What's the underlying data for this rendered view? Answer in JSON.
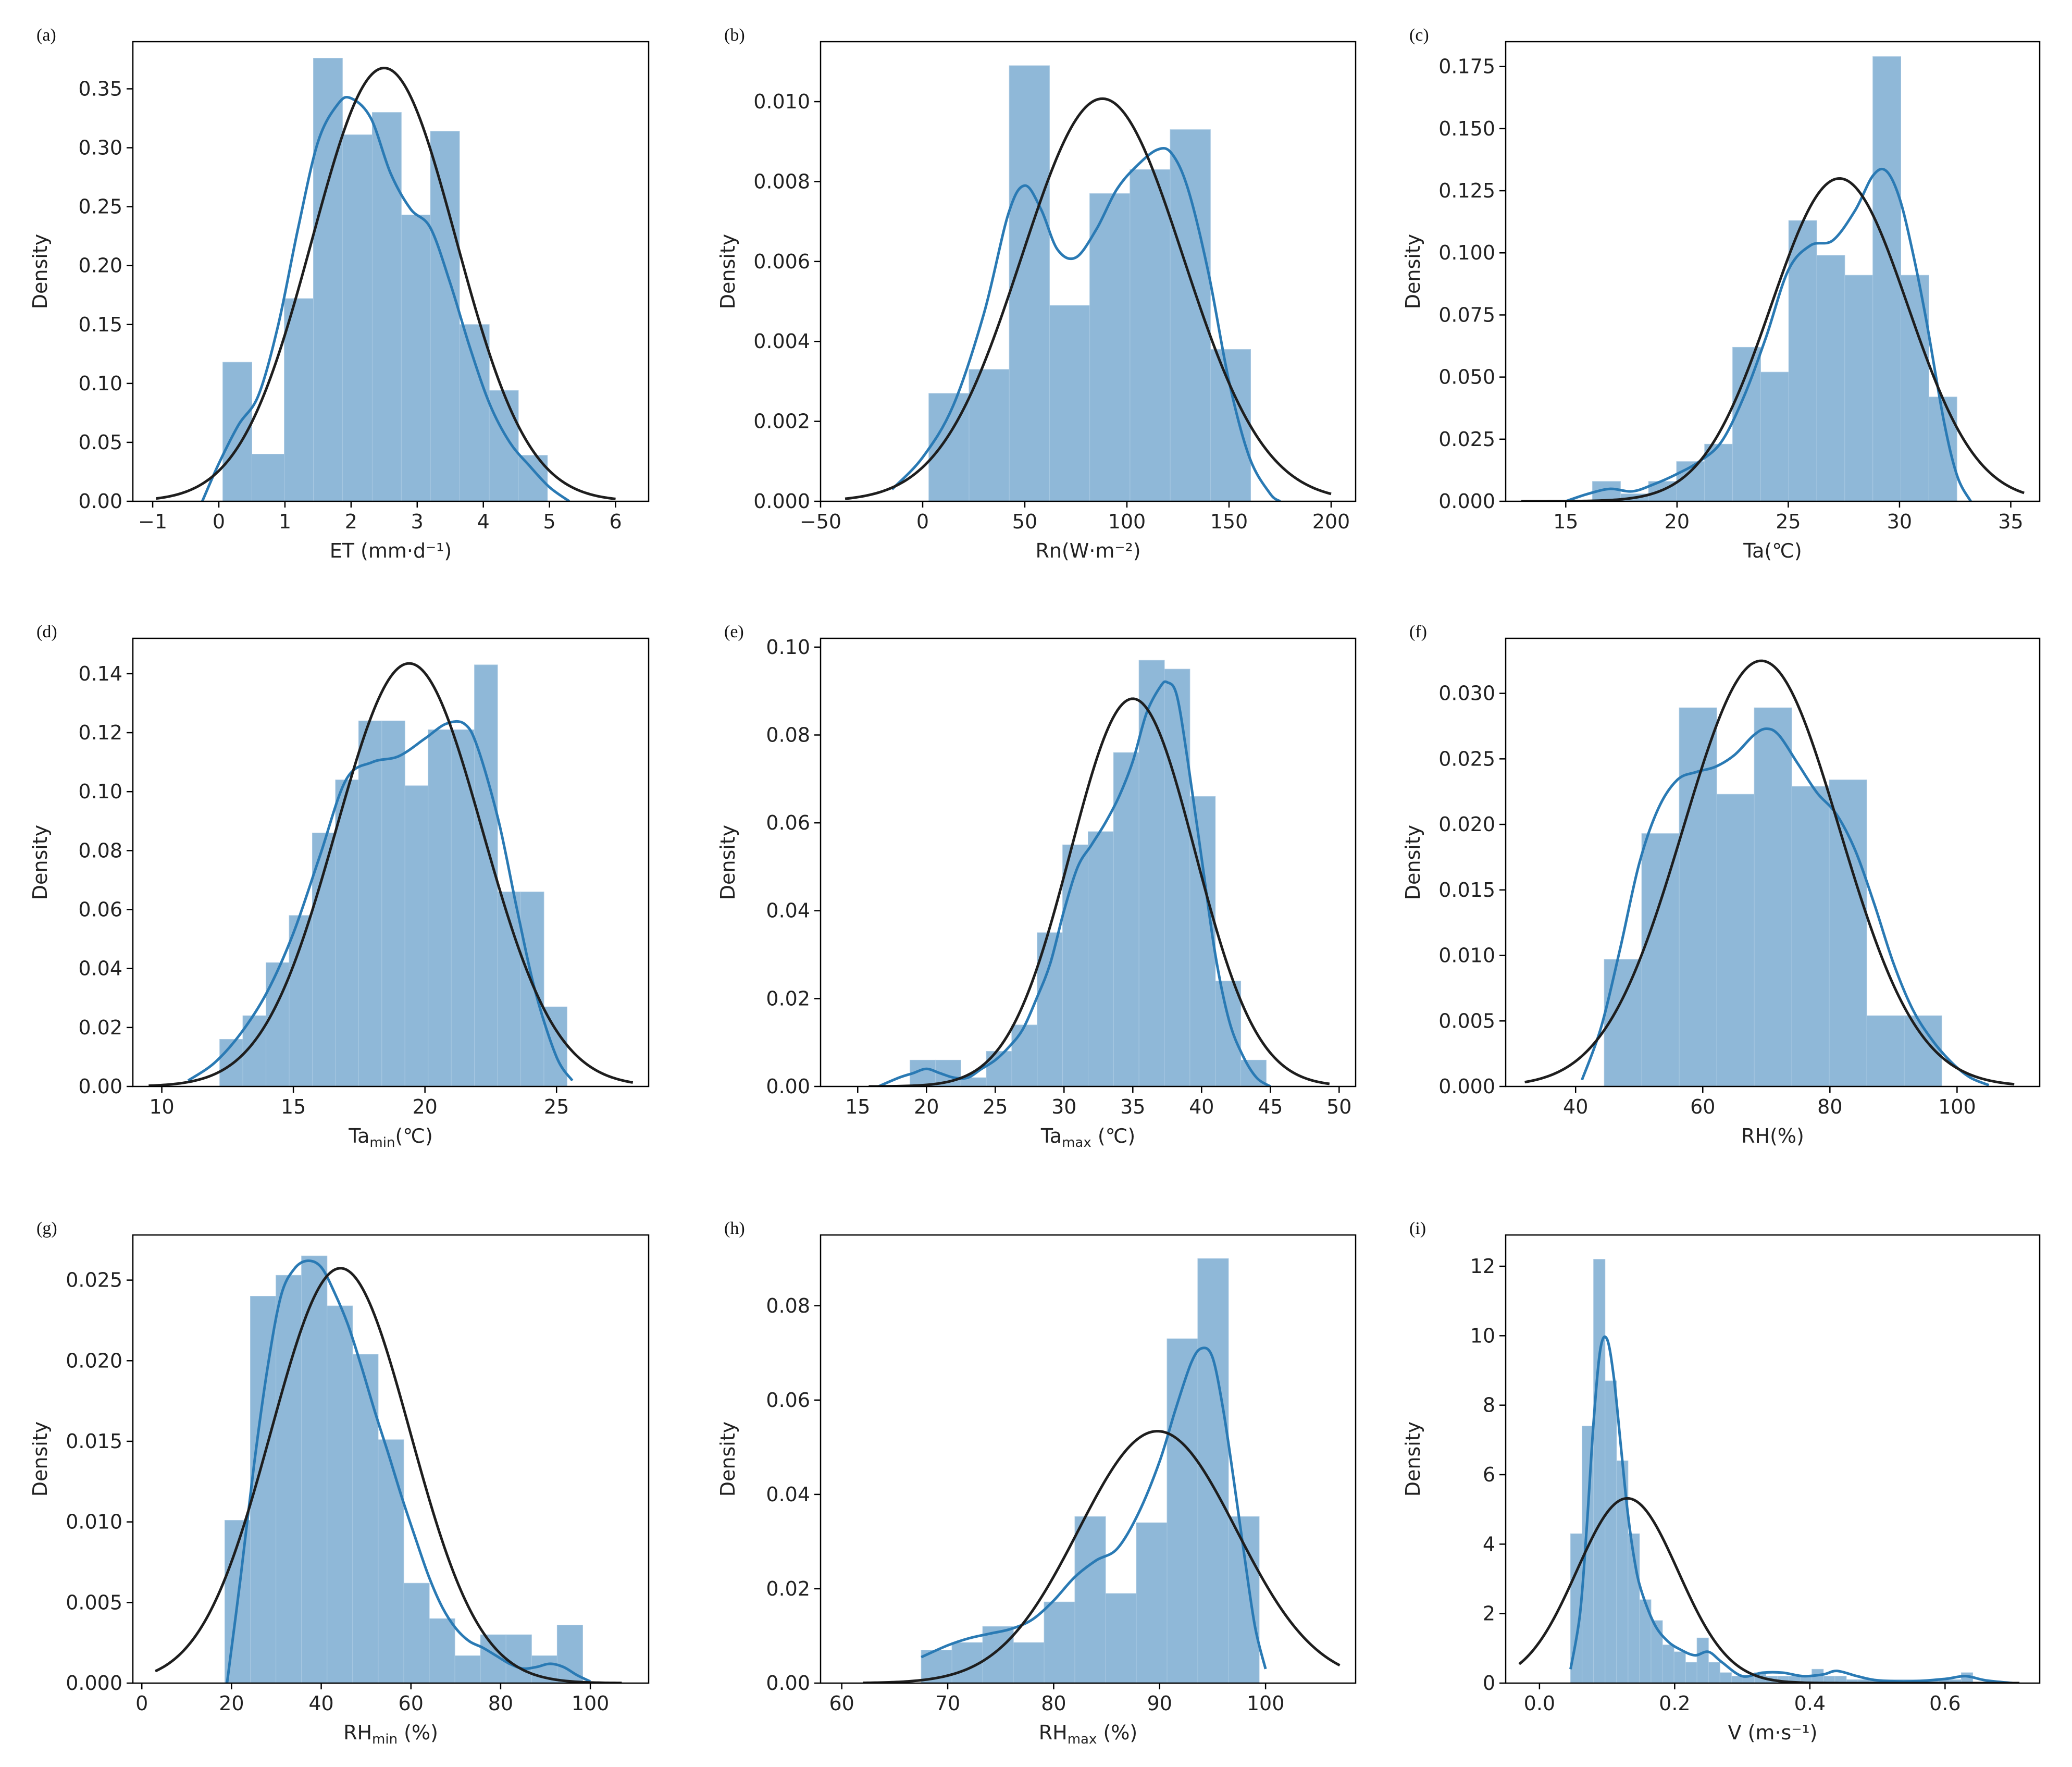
{
  "chart_data": [
    {
      "panel": "(a)",
      "type": "bar",
      "title": "",
      "xlabel": "ET (mm·d⁻¹)",
      "ylabel": "Density",
      "xlim": [
        -1.3,
        6.5
      ],
      "ylim": [
        0,
        0.39
      ],
      "xticks": [
        -1,
        0,
        1,
        2,
        3,
        4,
        5,
        6
      ],
      "xtick_labels": [
        "−1",
        "0",
        "1",
        "2",
        "3",
        "4",
        "5",
        "6"
      ],
      "yticks": [
        0,
        0.05,
        0.1,
        0.15,
        0.2,
        0.25,
        0.3,
        0.35
      ],
      "ytick_labels": [
        "0.00",
        "0.05",
        "0.10",
        "0.15",
        "0.20",
        "0.25",
        "0.30",
        "0.35"
      ],
      "hist_edges": [
        0.06,
        0.5,
        0.99,
        1.43,
        1.87,
        2.32,
        2.76,
        3.2,
        3.64,
        4.09,
        4.53,
        4.97
      ],
      "hist_values": [
        0.118,
        0.04,
        0.172,
        0.376,
        0.311,
        0.33,
        0.243,
        0.314,
        0.15,
        0.094,
        0.039
      ],
      "kde_x": [
        -0.25,
        0.0,
        0.3,
        0.6,
        0.9,
        1.2,
        1.5,
        1.8,
        2.0,
        2.3,
        2.6,
        2.9,
        3.2,
        3.5,
        3.8,
        4.1,
        4.4,
        4.7,
        5.0,
        5.3
      ],
      "kde_y": [
        0.0,
        0.032,
        0.065,
        0.09,
        0.15,
        0.232,
        0.305,
        0.337,
        0.342,
        0.325,
        0.278,
        0.248,
        0.232,
        0.185,
        0.13,
        0.082,
        0.05,
        0.03,
        0.012,
        0.0
      ],
      "normal": {
        "mean": 2.5,
        "sd": 1.085,
        "x_range": [
          -0.95,
          6.0
        ]
      }
    },
    {
      "panel": "(b)",
      "type": "bar",
      "title": "",
      "xlabel": "Rn(W·m⁻²)",
      "ylabel": "Density",
      "xlim": [
        -50,
        212
      ],
      "ylim": [
        0,
        0.0115
      ],
      "xticks": [
        -50,
        0,
        50,
        100,
        150,
        200
      ],
      "xtick_labels": [
        "−50",
        "0",
        "50",
        "100",
        "150",
        "200"
      ],
      "yticks": [
        0,
        0.002,
        0.004,
        0.006,
        0.008,
        0.01
      ],
      "ytick_labels": [
        "0.000",
        "0.002",
        "0.004",
        "0.006",
        "0.008",
        "0.010"
      ],
      "hist_edges": [
        3,
        22.7,
        42.4,
        62.1,
        81.8,
        101.5,
        121.2,
        140.9,
        160.6
      ],
      "hist_values": [
        0.0027,
        0.0033,
        0.0109,
        0.0049,
        0.0077,
        0.0083,
        0.0093,
        0.0038
      ],
      "kde_x": [
        -15,
        0,
        15,
        30,
        42,
        50,
        58,
        66,
        75,
        85,
        95,
        105,
        115,
        122,
        130,
        140,
        150,
        160,
        170,
        175
      ],
      "kde_y": [
        0.0003,
        0.0011,
        0.0024,
        0.0047,
        0.0072,
        0.0079,
        0.0073,
        0.0063,
        0.0061,
        0.0068,
        0.0078,
        0.0084,
        0.0088,
        0.0087,
        0.0078,
        0.0057,
        0.003,
        0.0011,
        0.0002,
        0.0
      ],
      "normal": {
        "mean": 88,
        "sd": 39.6,
        "x_range": [
          -38,
          200
        ]
      }
    },
    {
      "panel": "(c)",
      "type": "bar",
      "title": "",
      "xlabel": "Ta(℃)",
      "ylabel": "Density",
      "xlim": [
        12.3,
        36.3
      ],
      "ylim": [
        0,
        0.185
      ],
      "xticks": [
        15,
        20,
        25,
        30,
        35
      ],
      "xtick_labels": [
        "15",
        "20",
        "25",
        "30",
        "35"
      ],
      "yticks": [
        0,
        0.025,
        0.05,
        0.075,
        0.1,
        0.125,
        0.15,
        0.175
      ],
      "ytick_labels": [
        "0.000",
        "0.025",
        "0.050",
        "0.075",
        "0.100",
        "0.125",
        "0.150",
        "0.175"
      ],
      "hist_edges": [
        16.2,
        17.46,
        18.72,
        19.98,
        21.24,
        22.5,
        23.76,
        25.02,
        26.28,
        27.54,
        28.8,
        30.06,
        31.32,
        32.58
      ],
      "hist_values": [
        0.008,
        0.003,
        0.008,
        0.016,
        0.023,
        0.062,
        0.052,
        0.113,
        0.099,
        0.091,
        0.179,
        0.091,
        0.042
      ],
      "kde_x": [
        15,
        16,
        17,
        18,
        19,
        20,
        21,
        22,
        23,
        24,
        25,
        26,
        27,
        28,
        28.8,
        29.4,
        30,
        30.6,
        31.2,
        32,
        32.6,
        33.2
      ],
      "kde_y": [
        0.0,
        0.003,
        0.005,
        0.004,
        0.007,
        0.011,
        0.016,
        0.024,
        0.042,
        0.066,
        0.093,
        0.103,
        0.105,
        0.117,
        0.131,
        0.133,
        0.122,
        0.1,
        0.073,
        0.032,
        0.01,
        0.0
      ],
      "normal": {
        "mean": 27.3,
        "sd": 3.07,
        "x_range": [
          13.0,
          35.6
        ]
      }
    },
    {
      "panel": "(d)",
      "type": "bar",
      "title": "",
      "xlabel": "Ta",
      "xlabel_sub": "min",
      "xlabel_tail": "(℃)",
      "ylabel": "Density",
      "xlim": [
        8.9,
        28.5
      ],
      "ylim": [
        0,
        0.152
      ],
      "xticks": [
        10,
        15,
        20,
        25
      ],
      "xtick_labels": [
        "10",
        "15",
        "20",
        "25"
      ],
      "yticks": [
        0,
        0.02,
        0.04,
        0.06,
        0.08,
        0.1,
        0.12,
        0.14
      ],
      "ytick_labels": [
        "0.00",
        "0.02",
        "0.04",
        "0.06",
        "0.08",
        "0.10",
        "0.12",
        "0.14"
      ],
      "hist_edges": [
        12.2,
        13.08,
        13.96,
        14.84,
        15.72,
        16.6,
        17.48,
        18.36,
        19.24,
        20.12,
        21.0,
        21.88,
        22.76,
        23.64,
        24.52,
        25.4
      ],
      "hist_values": [
        0.016,
        0.024,
        0.042,
        0.058,
        0.086,
        0.104,
        0.124,
        0.124,
        0.102,
        0.121,
        0.121,
        0.143,
        0.066,
        0.066,
        0.027
      ],
      "kde_x": [
        11,
        12,
        13,
        14,
        15,
        16,
        17,
        18,
        19,
        20,
        20.8,
        21.5,
        22,
        22.8,
        23.5,
        24.2,
        25,
        25.6
      ],
      "kde_y": [
        0.002,
        0.008,
        0.018,
        0.032,
        0.052,
        0.078,
        0.104,
        0.11,
        0.112,
        0.118,
        0.123,
        0.123,
        0.115,
        0.09,
        0.06,
        0.032,
        0.01,
        0.002
      ],
      "normal": {
        "mean": 19.4,
        "sd": 2.78,
        "x_range": [
          9.5,
          27.9
        ]
      }
    },
    {
      "panel": "(e)",
      "type": "bar",
      "title": "",
      "xlabel": "Ta",
      "xlabel_sub": "max",
      "xlabel_tail": " (℃)",
      "ylabel": "Density",
      "xlim": [
        12.3,
        51.2
      ],
      "ylim": [
        0,
        0.102
      ],
      "xticks": [
        15,
        20,
        25,
        30,
        35,
        40,
        45,
        50
      ],
      "xtick_labels": [
        "15",
        "20",
        "25",
        "30",
        "35",
        "40",
        "45",
        "50"
      ],
      "yticks": [
        0,
        0.02,
        0.04,
        0.06,
        0.08,
        0.1
      ],
      "ytick_labels": [
        "0.00",
        "0.02",
        "0.04",
        "0.06",
        "0.08",
        "0.10"
      ],
      "hist_edges": [
        18.8,
        20.65,
        22.5,
        24.35,
        26.2,
        28.05,
        29.9,
        31.75,
        33.6,
        35.45,
        37.3,
        39.15,
        41.0,
        42.85,
        44.7
      ],
      "hist_values": [
        0.006,
        0.006,
        0.002,
        0.008,
        0.014,
        0.035,
        0.055,
        0.058,
        0.076,
        0.097,
        0.095,
        0.066,
        0.024,
        0.006
      ],
      "kde_x": [
        16.5,
        18,
        19,
        20,
        21,
        22,
        23,
        24,
        25,
        26,
        27,
        28,
        29,
        30,
        31,
        32,
        33,
        34,
        35,
        36,
        37,
        37.5,
        38.2,
        39,
        40,
        41,
        42,
        43,
        44,
        45
      ],
      "kde_y": [
        0.0,
        0.002,
        0.003,
        0.004,
        0.003,
        0.002,
        0.002,
        0.004,
        0.006,
        0.009,
        0.013,
        0.02,
        0.028,
        0.04,
        0.05,
        0.055,
        0.06,
        0.066,
        0.074,
        0.085,
        0.091,
        0.092,
        0.089,
        0.074,
        0.052,
        0.03,
        0.015,
        0.007,
        0.002,
        0.0
      ],
      "normal": {
        "mean": 35.0,
        "sd": 4.52,
        "x_range": [
          15.8,
          49.3
        ]
      }
    },
    {
      "panel": "(f)",
      "type": "bar",
      "title": "",
      "xlabel": "RH(%)",
      "ylabel": "Density",
      "xlim": [
        29,
        113
      ],
      "ylim": [
        0,
        0.0342
      ],
      "xticks": [
        40,
        60,
        80,
        100
      ],
      "xtick_labels": [
        "40",
        "60",
        "80",
        "100"
      ],
      "yticks": [
        0,
        0.005,
        0.01,
        0.015,
        0.02,
        0.025,
        0.03
      ],
      "ytick_labels": [
        "0.000",
        "0.005",
        "0.010",
        "0.015",
        "0.020",
        "0.025",
        "0.030"
      ],
      "hist_edges": [
        44.5,
        50.4,
        56.3,
        62.2,
        68.1,
        74.0,
        79.9,
        85.8,
        91.7,
        97.6
      ],
      "hist_values": [
        0.0097,
        0.0193,
        0.0289,
        0.0223,
        0.0289,
        0.0229,
        0.0234,
        0.0054,
        0.0054
      ],
      "kde_x": [
        41,
        44,
        47,
        50,
        53,
        56,
        59,
        62,
        65,
        68,
        70,
        72,
        75,
        78,
        81,
        84,
        87,
        90,
        93,
        96,
        99,
        102,
        105
      ],
      "kde_y": [
        0.0005,
        0.0045,
        0.0105,
        0.017,
        0.0212,
        0.0234,
        0.024,
        0.0244,
        0.0253,
        0.0268,
        0.0273,
        0.0268,
        0.0246,
        0.0224,
        0.0208,
        0.018,
        0.0139,
        0.0094,
        0.0059,
        0.0036,
        0.0019,
        0.0007,
        0.0001
      ],
      "normal": {
        "mean": 69.2,
        "sd": 12.28,
        "x_range": [
          32.0,
          109.0
        ]
      }
    },
    {
      "panel": "(g)",
      "type": "bar",
      "title": "",
      "xlabel": "RH",
      "xlabel_sub": "min",
      "xlabel_tail": " (%)",
      "ylabel": "Density",
      "xlim": [
        -2,
        113
      ],
      "ylim": [
        0,
        0.0278
      ],
      "xticks": [
        0,
        20,
        40,
        60,
        80,
        100
      ],
      "xtick_labels": [
        "0",
        "20",
        "40",
        "60",
        "80",
        "100"
      ],
      "yticks": [
        0,
        0.005,
        0.01,
        0.015,
        0.02,
        0.025
      ],
      "ytick_labels": [
        "0.000",
        "0.005",
        "0.010",
        "0.015",
        "0.020",
        "0.025"
      ],
      "hist_edges": [
        18.5,
        24.2,
        29.9,
        35.6,
        41.3,
        47.0,
        52.7,
        58.4,
        64.1,
        69.8,
        75.5,
        81.2,
        86.9,
        92.6,
        98.3
      ],
      "hist_values": [
        0.0101,
        0.024,
        0.0253,
        0.0265,
        0.0234,
        0.0204,
        0.0151,
        0.0062,
        0.004,
        0.0017,
        0.003,
        0.003,
        0.0017,
        0.0036
      ],
      "kde_x": [
        19,
        22,
        25,
        28,
        31,
        34,
        37,
        40,
        43,
        46,
        49,
        52,
        55,
        58,
        61,
        64,
        67,
        70,
        73,
        76,
        79,
        82,
        85,
        88,
        91,
        94,
        97,
        100
      ],
      "kde_y": [
        0.0,
        0.0065,
        0.0135,
        0.0195,
        0.024,
        0.0257,
        0.0262,
        0.0258,
        0.0242,
        0.0222,
        0.0196,
        0.0168,
        0.0142,
        0.0115,
        0.009,
        0.0066,
        0.0047,
        0.0034,
        0.0026,
        0.0022,
        0.0017,
        0.0012,
        0.0009,
        0.001,
        0.0012,
        0.001,
        0.0005,
        0.0001
      ],
      "normal": {
        "mean": 44.3,
        "sd": 15.5,
        "x_range": [
          3.0,
          107.0
        ]
      }
    },
    {
      "panel": "(h)",
      "type": "bar",
      "title": "",
      "xlabel": "RH",
      "xlabel_sub": "max",
      "xlabel_tail": " (%)",
      "ylabel": "Density",
      "xlim": [
        58,
        108.5
      ],
      "ylim": [
        0,
        0.095
      ],
      "xticks": [
        60,
        70,
        80,
        90,
        100
      ],
      "xtick_labels": [
        "60",
        "70",
        "80",
        "90",
        "100"
      ],
      "yticks": [
        0,
        0.02,
        0.04,
        0.06,
        0.08
      ],
      "ytick_labels": [
        "0.00",
        "0.02",
        "0.04",
        "0.06",
        "0.08"
      ],
      "hist_edges": [
        67.5,
        70.4,
        73.3,
        76.2,
        79.1,
        82.0,
        84.9,
        87.8,
        90.7,
        93.6,
        96.5,
        99.4
      ],
      "hist_values": [
        0.007,
        0.0086,
        0.012,
        0.0086,
        0.0172,
        0.0353,
        0.019,
        0.034,
        0.073,
        0.09,
        0.0353
      ],
      "kde_x": [
        67.5,
        70,
        72,
        74,
        76,
        78,
        80,
        82,
        84,
        86,
        88,
        90,
        91.5,
        93,
        94,
        95,
        96,
        97,
        98,
        99,
        100
      ],
      "kde_y": [
        0.0055,
        0.008,
        0.0095,
        0.0105,
        0.0115,
        0.0135,
        0.0175,
        0.0225,
        0.026,
        0.0285,
        0.036,
        0.047,
        0.058,
        0.068,
        0.071,
        0.069,
        0.058,
        0.043,
        0.027,
        0.012,
        0.003
      ],
      "normal": {
        "mean": 89.8,
        "sd": 7.47,
        "x_range": [
          62.0,
          107.0
        ]
      }
    },
    {
      "panel": "(i)",
      "type": "bar",
      "title": "",
      "xlabel": "V (m·s⁻¹)",
      "ylabel": "Density",
      "xlim": [
        -0.05,
        0.74
      ],
      "ylim": [
        0,
        12.9
      ],
      "xticks": [
        0,
        0.2,
        0.4,
        0.6
      ],
      "xtick_labels": [
        "0.0",
        "0.2",
        "0.4",
        "0.6"
      ],
      "yticks": [
        0,
        2,
        4,
        6,
        8,
        10,
        12
      ],
      "ytick_labels": [
        "0",
        "2",
        "4",
        "6",
        "8",
        "10",
        "12"
      ],
      "hist_edges": [
        0.046,
        0.063,
        0.08,
        0.097,
        0.114,
        0.131,
        0.148,
        0.165,
        0.182,
        0.199,
        0.216,
        0.233,
        0.25,
        0.267,
        0.284,
        0.301,
        0.318,
        0.335,
        0.352,
        0.369,
        0.386,
        0.403,
        0.42,
        0.437,
        0.454,
        0.471,
        0.488,
        0.505,
        0.522,
        0.539,
        0.556,
        0.573,
        0.59,
        0.607,
        0.624,
        0.641
      ],
      "hist_values": [
        4.3,
        7.4,
        12.2,
        8.7,
        6.4,
        4.3,
        2.4,
        1.8,
        1.1,
        0.9,
        0.6,
        1.3,
        0.6,
        0.3,
        0.2,
        0.2,
        0.3,
        0.2,
        0.2,
        0.2,
        0.2,
        0.4,
        0.2,
        0.2,
        0.1,
        0.1,
        0.1,
        0.1,
        0.1,
        0.1,
        0.1,
        0.1,
        0.1,
        0.1,
        0.3
      ],
      "kde_x": [
        0.046,
        0.06,
        0.07,
        0.08,
        0.09,
        0.1,
        0.11,
        0.12,
        0.13,
        0.14,
        0.15,
        0.17,
        0.19,
        0.21,
        0.23,
        0.25,
        0.27,
        0.3,
        0.33,
        0.36,
        0.39,
        0.42,
        0.44,
        0.47,
        0.5,
        0.55,
        0.6,
        0.63,
        0.66,
        0.7
      ],
      "kde_y": [
        0.4,
        2.0,
        4.5,
        7.5,
        9.6,
        9.9,
        8.8,
        6.9,
        5.0,
        3.6,
        2.7,
        1.7,
        1.2,
        0.95,
        0.8,
        0.9,
        0.6,
        0.2,
        0.3,
        0.3,
        0.2,
        0.25,
        0.35,
        0.2,
        0.08,
        0.05,
        0.12,
        0.2,
        0.08,
        0.0
      ],
      "normal": {
        "mean": 0.13,
        "sd": 0.075,
        "x_range": [
          -0.03,
          0.71
        ]
      }
    }
  ]
}
